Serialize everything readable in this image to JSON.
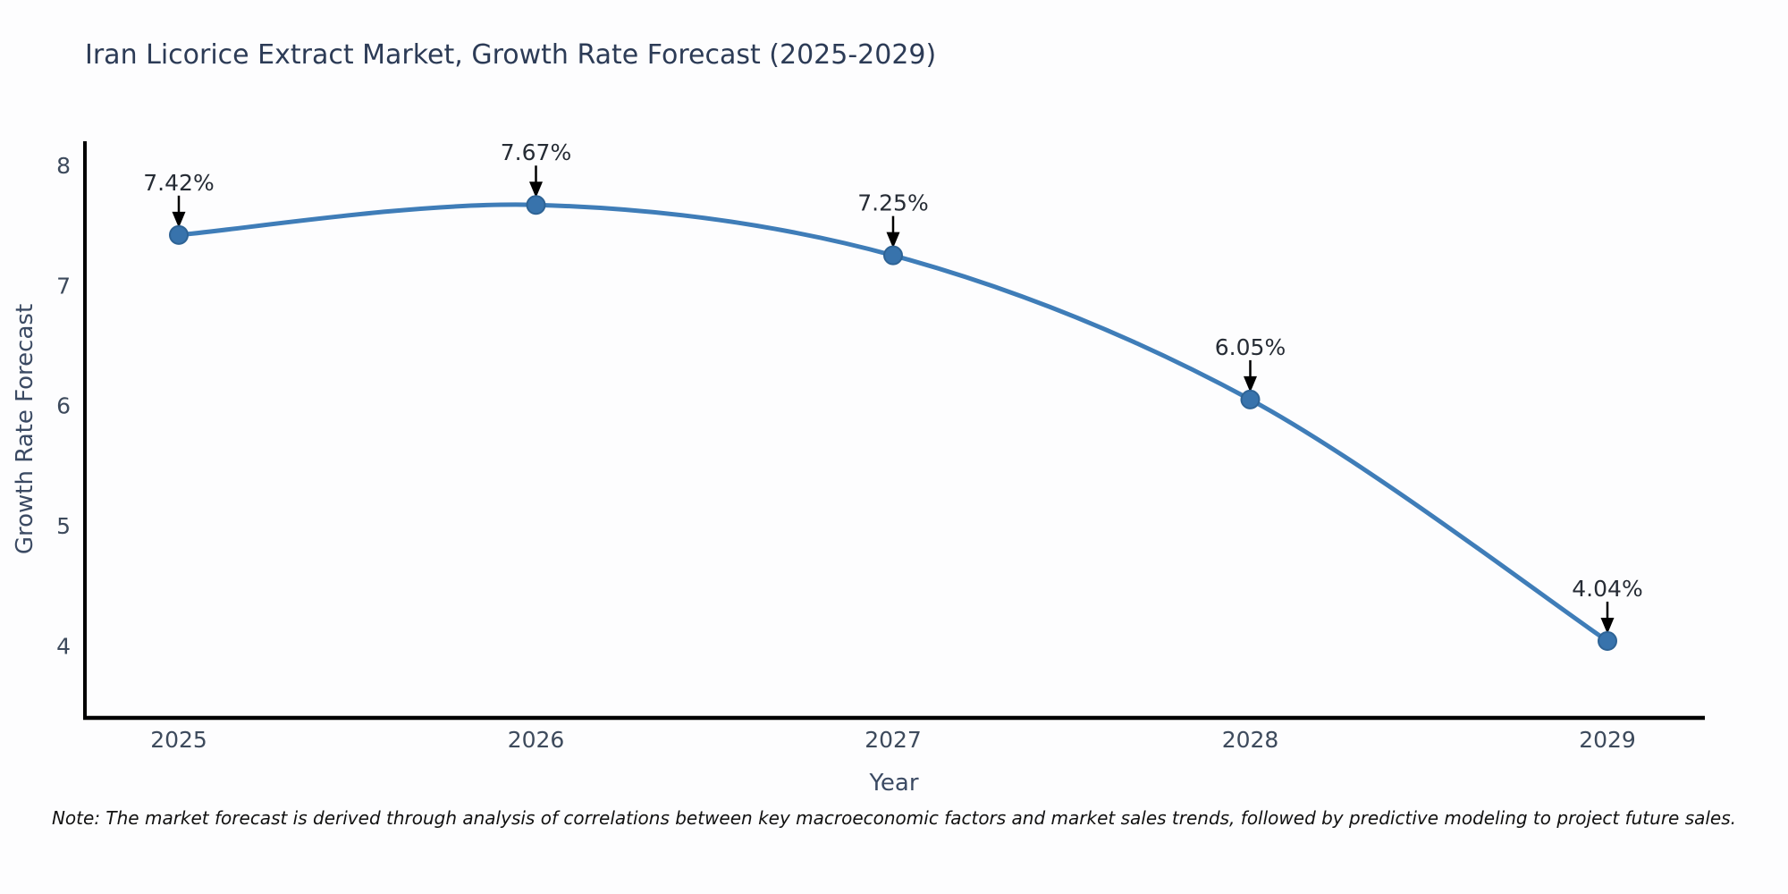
{
  "chart_data": {
    "type": "line",
    "title": "Iran Licorice Extract Market, Growth Rate Forecast (2025-2029)",
    "xlabel": "Year",
    "ylabel": "Growth Rate Forecast",
    "categories": [
      "2025",
      "2026",
      "2027",
      "2028",
      "2029"
    ],
    "series": [
      {
        "name": "Growth Rate Forecast",
        "values": [
          7.42,
          7.67,
          7.25,
          6.05,
          4.04
        ],
        "point_labels": [
          "7.42%",
          "7.67%",
          "7.25%",
          "6.05%",
          "4.04%"
        ]
      }
    ],
    "y_ticks": [
      4,
      5,
      6,
      7,
      8
    ],
    "ylim": [
      3.4,
      8.2
    ],
    "grid": false,
    "legend": "none",
    "marker_style": "filled-circle",
    "annotation_style": "label-with-down-arrow"
  },
  "note": "Note: The market forecast is derived through analysis of correlations between key macroeconomic factors and market sales trends, followed by predictive modeling to project future sales.",
  "colors": {
    "line": "#3f7db8",
    "marker_fill": "#3873ac",
    "marker_edge": "#2e6395",
    "spine": "#000000",
    "title_text": "#2c3b56",
    "axis_label_text": "#3b4a63",
    "tick_text": "#3d4a5c",
    "annotation_text": "#262c35",
    "arrow": "#000000",
    "note_text": "#111111",
    "background": "#fdfdfe"
  }
}
